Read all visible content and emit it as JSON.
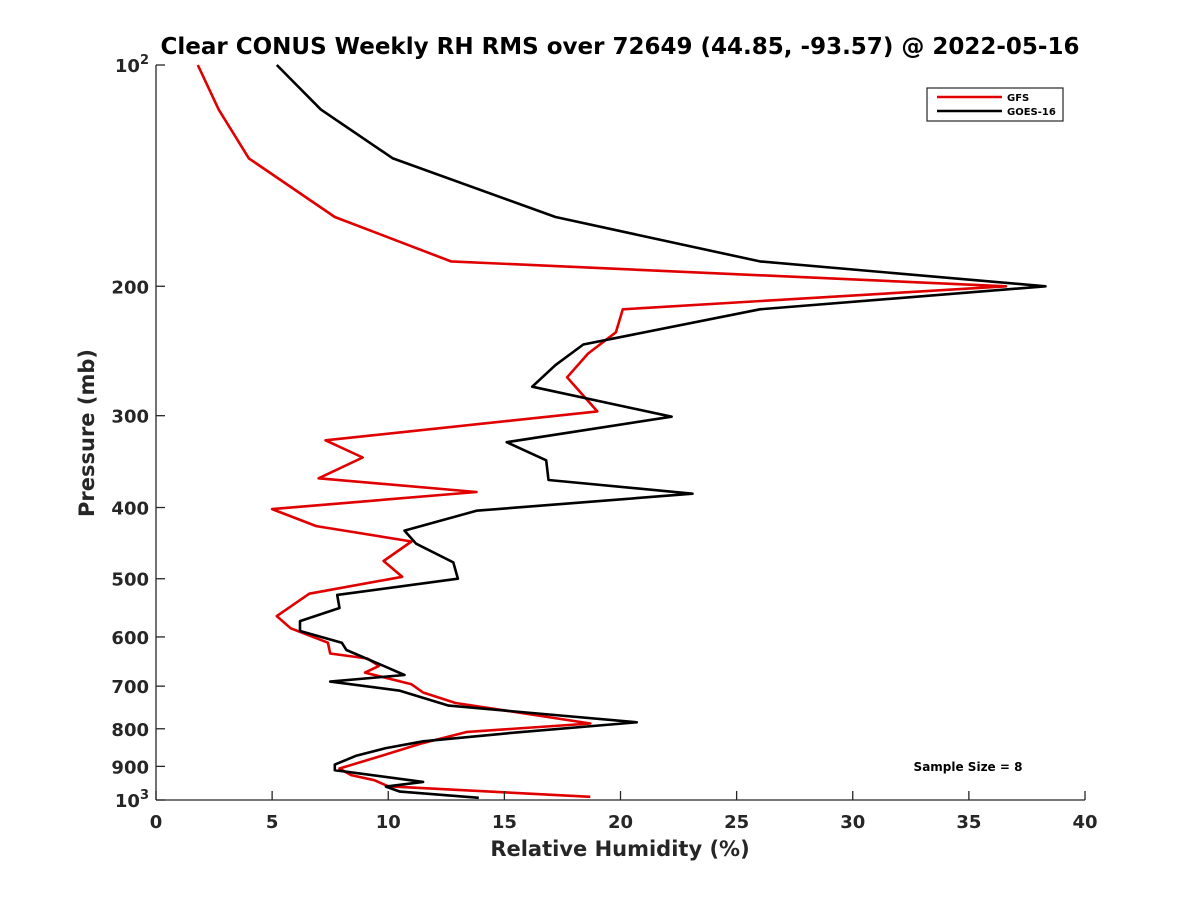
{
  "chart_data": {
    "type": "line",
    "title": "Clear CONUS Weekly RH RMS over 72649 (44.85, -93.57) @ 2022-05-16",
    "xlabel": "Relative Humidity (%)",
    "ylabel": "Pressure (mb)",
    "xlim": [
      0,
      40
    ],
    "ylim": [
      100,
      1000
    ],
    "y_scale": "log",
    "y_reversed": true,
    "x_ticks": [
      {
        "value": 0,
        "label": "0"
      },
      {
        "value": 5,
        "label": "5"
      },
      {
        "value": 10,
        "label": "10"
      },
      {
        "value": 15,
        "label": "15"
      },
      {
        "value": 20,
        "label": "20"
      },
      {
        "value": 25,
        "label": "25"
      },
      {
        "value": 30,
        "label": "30"
      },
      {
        "value": 35,
        "label": "35"
      },
      {
        "value": 40,
        "label": "40"
      }
    ],
    "y_ticks": [
      {
        "value": 100,
        "label": "10",
        "sup": "2"
      },
      {
        "value": 200,
        "label": "200",
        "sup": ""
      },
      {
        "value": 300,
        "label": "300",
        "sup": ""
      },
      {
        "value": 400,
        "label": "400",
        "sup": ""
      },
      {
        "value": 500,
        "label": "500",
        "sup": ""
      },
      {
        "value": 600,
        "label": "600",
        "sup": ""
      },
      {
        "value": 700,
        "label": "700",
        "sup": ""
      },
      {
        "value": 800,
        "label": "800",
        "sup": ""
      },
      {
        "value": 900,
        "label": "900",
        "sup": ""
      },
      {
        "value": 1000,
        "label": "10",
        "sup": "3"
      }
    ],
    "grid": false,
    "legend_position": "top-right",
    "annotation": "Sample Size = 8",
    "series": [
      {
        "name": "GFS",
        "color": "#e00000",
        "points": [
          [
            1.8,
            100
          ],
          [
            2.7,
            115
          ],
          [
            4.0,
            134
          ],
          [
            7.7,
            161
          ],
          [
            12.7,
            185
          ],
          [
            36.6,
            200
          ],
          [
            20.1,
            215
          ],
          [
            19.8,
            231
          ],
          [
            18.6,
            247
          ],
          [
            17.7,
            266
          ],
          [
            19.0,
            296
          ],
          [
            7.3,
            324
          ],
          [
            8.9,
            342
          ],
          [
            7.0,
            365
          ],
          [
            13.8,
            381
          ],
          [
            5.0,
            402
          ],
          [
            6.9,
            424
          ],
          [
            11.0,
            445
          ],
          [
            9.8,
            473
          ],
          [
            10.6,
            497
          ],
          [
            6.6,
            524
          ],
          [
            5.2,
            562
          ],
          [
            5.8,
            584
          ],
          [
            7.4,
            611
          ],
          [
            7.5,
            632
          ],
          [
            9.1,
            642
          ],
          [
            9.6,
            657
          ],
          [
            9.0,
            671
          ],
          [
            11.0,
            696
          ],
          [
            11.5,
            714
          ],
          [
            12.9,
            738
          ],
          [
            18.7,
            787
          ],
          [
            13.4,
            808
          ],
          [
            11.4,
            838
          ],
          [
            9.7,
            871
          ],
          [
            7.9,
            906
          ],
          [
            8.4,
            925
          ],
          [
            9.4,
            940
          ],
          [
            10.0,
            958
          ],
          [
            18.7,
            990
          ]
        ]
      },
      {
        "name": "GOES-16",
        "color": "#000000",
        "points": [
          [
            5.2,
            100
          ],
          [
            7.1,
            115
          ],
          [
            10.2,
            134
          ],
          [
            17.2,
            161
          ],
          [
            26.0,
            185
          ],
          [
            38.3,
            200
          ],
          [
            26.0,
            215
          ],
          [
            18.4,
            240
          ],
          [
            17.2,
            256
          ],
          [
            16.2,
            274
          ],
          [
            22.2,
            301
          ],
          [
            15.1,
            326
          ],
          [
            16.8,
            345
          ],
          [
            16.9,
            367
          ],
          [
            23.1,
            383
          ],
          [
            13.8,
            404
          ],
          [
            10.7,
            430
          ],
          [
            11.2,
            448
          ],
          [
            12.8,
            475
          ],
          [
            13.0,
            500
          ],
          [
            7.8,
            526
          ],
          [
            7.9,
            548
          ],
          [
            6.2,
            571
          ],
          [
            6.2,
            589
          ],
          [
            8.0,
            611
          ],
          [
            8.2,
            625
          ],
          [
            9.7,
            655
          ],
          [
            10.7,
            676
          ],
          [
            7.5,
            690
          ],
          [
            10.5,
            710
          ],
          [
            12.6,
            744
          ],
          [
            20.7,
            784
          ],
          [
            15.4,
            810
          ],
          [
            11.5,
            832
          ],
          [
            9.9,
            850
          ],
          [
            8.6,
            871
          ],
          [
            7.7,
            895
          ],
          [
            7.7,
            911
          ],
          [
            11.5,
            945
          ],
          [
            9.9,
            959
          ],
          [
            10.5,
            974
          ],
          [
            13.9,
            993
          ]
        ]
      }
    ]
  }
}
